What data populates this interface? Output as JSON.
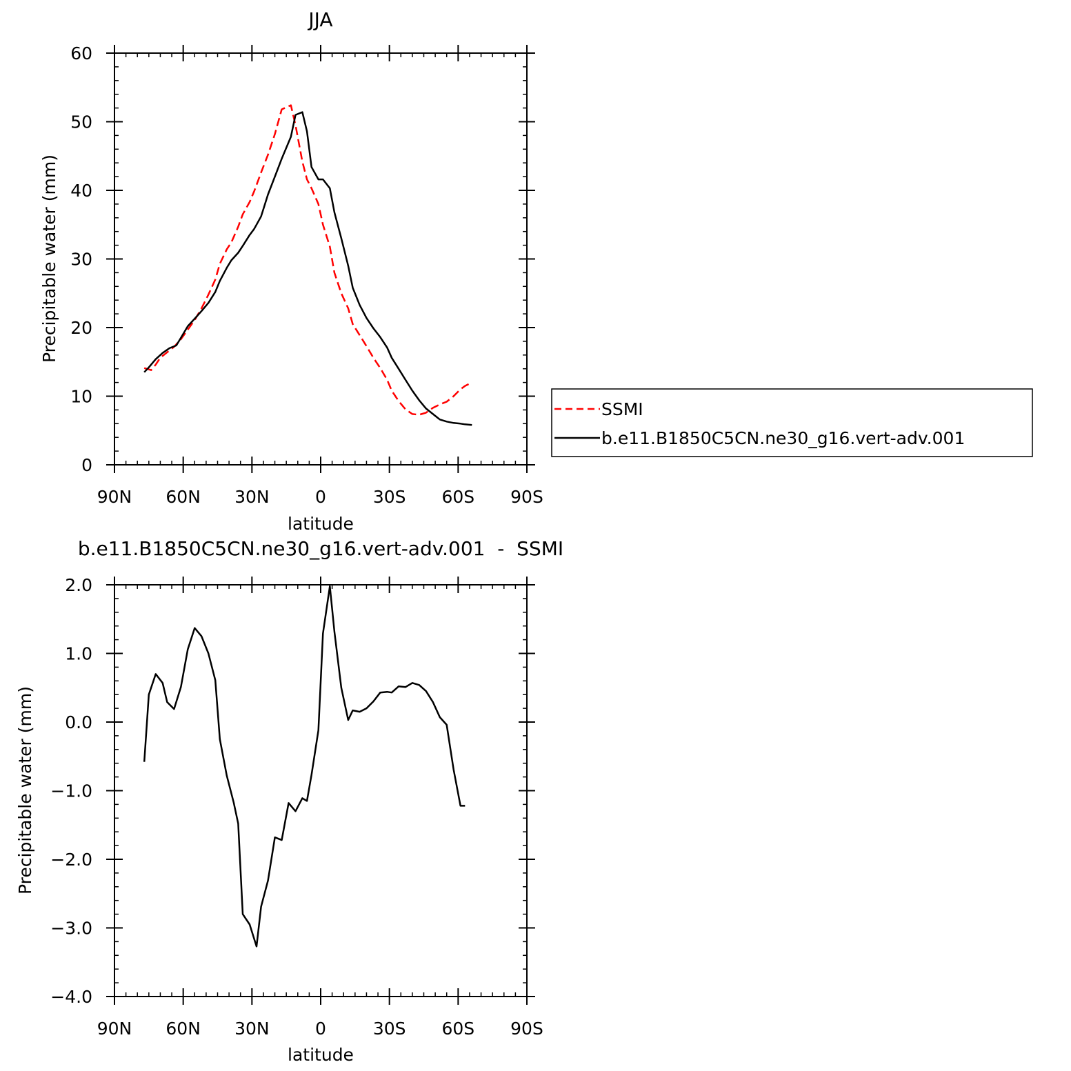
{
  "chart_data": [
    {
      "type": "line",
      "title": "JJA",
      "xlabel": "latitude",
      "ylabel": "Precipitable water (mm)",
      "xlim": [
        90,
        -90
      ],
      "ylim": [
        0,
        60
      ],
      "x_ticks": [
        {
          "value": 90,
          "label": "90N"
        },
        {
          "value": 60,
          "label": "60N"
        },
        {
          "value": 30,
          "label": "30N"
        },
        {
          "value": 0,
          "label": "0"
        },
        {
          "value": -30,
          "label": "30S"
        },
        {
          "value": -60,
          "label": "60S"
        },
        {
          "value": -90,
          "label": "90S"
        }
      ],
      "y_ticks": [
        {
          "value": 0,
          "label": "0"
        },
        {
          "value": 10,
          "label": "10"
        },
        {
          "value": 20,
          "label": "20"
        },
        {
          "value": 30,
          "label": "30"
        },
        {
          "value": 40,
          "label": "40"
        },
        {
          "value": 50,
          "label": "50"
        },
        {
          "value": 60,
          "label": "60"
        }
      ],
      "grid": false,
      "legend_position": "right",
      "series": [
        {
          "name": "SSMI",
          "color": "#ff0000",
          "style": "dashed",
          "x": [
            77,
            74,
            72,
            70,
            67,
            64,
            61,
            58,
            55,
            52,
            49,
            46,
            44,
            41,
            39,
            36,
            34,
            31,
            29,
            26,
            23,
            20,
            17,
            13,
            11,
            8,
            6,
            4,
            1,
            -1,
            -4,
            -6,
            -9,
            -12,
            -14,
            -17,
            -20,
            -23,
            -26,
            -29,
            -31,
            -34,
            -37,
            -40,
            -43,
            -46,
            -49,
            -52,
            -55,
            -58,
            -61,
            -63,
            -66
          ],
          "y": [
            14.1,
            13.8,
            14.6,
            15.6,
            16.4,
            17.2,
            18.3,
            19.7,
            21.1,
            22.8,
            24.8,
            27.0,
            29.3,
            31.4,
            32.4,
            34.7,
            36.5,
            38.3,
            39.9,
            42.6,
            45.2,
            48.2,
            51.8,
            52.4,
            49.5,
            44.2,
            41.6,
            40.3,
            38.0,
            35.0,
            31.8,
            28.0,
            25.0,
            22.8,
            20.5,
            18.9,
            17.3,
            15.6,
            14.1,
            12.4,
            10.8,
            9.3,
            8.1,
            7.4,
            7.3,
            7.6,
            8.3,
            8.8,
            9.2,
            10.0,
            11.0,
            11.5,
            12.0
          ]
        },
        {
          "name": "b.e11.B1850C5CN.ne30_g16.vert-adv.001",
          "color": "#000000",
          "style": "solid",
          "x": [
            77,
            75,
            72,
            69,
            66,
            63,
            61,
            58,
            55,
            52,
            49,
            46,
            44,
            41,
            39,
            36,
            34,
            31,
            29,
            26,
            23,
            20,
            17,
            13,
            11,
            8,
            6,
            4,
            1,
            -1,
            -4,
            -6,
            -9,
            -12,
            -14,
            -17,
            -20,
            -23,
            -26,
            -29,
            -31,
            -34,
            -37,
            -40,
            -43,
            -46,
            -49,
            -52,
            -55,
            -58,
            -61,
            -63,
            -66
          ],
          "y": [
            13.5,
            14.2,
            15.4,
            16.3,
            17.0,
            17.4,
            18.5,
            20.2,
            21.3,
            22.4,
            23.6,
            25.2,
            26.8,
            28.7,
            29.8,
            30.9,
            31.9,
            33.5,
            34.4,
            36.2,
            39.4,
            42.0,
            44.6,
            47.8,
            51.0,
            51.4,
            48.6,
            43.4,
            41.6,
            41.6,
            40.3,
            36.8,
            33.0,
            29.0,
            25.8,
            23.3,
            21.4,
            19.9,
            18.6,
            17.1,
            15.6,
            14.0,
            12.4,
            10.8,
            9.4,
            8.2,
            7.4,
            6.6,
            6.3,
            6.1,
            6.0,
            5.9,
            5.8
          ]
        }
      ]
    },
    {
      "type": "line",
      "title": "b.e11.B1850C5CN.ne30_g16.vert-adv.001  -  SSMI",
      "xlabel": "latitude",
      "ylabel": "Precipitable water (mm)",
      "xlim": [
        90,
        -90
      ],
      "ylim": [
        -4.0,
        2.0
      ],
      "x_ticks": [
        {
          "value": 90,
          "label": "90N"
        },
        {
          "value": 60,
          "label": "60N"
        },
        {
          "value": 30,
          "label": "30N"
        },
        {
          "value": 0,
          "label": "0"
        },
        {
          "value": -30,
          "label": "30S"
        },
        {
          "value": -60,
          "label": "60S"
        },
        {
          "value": -90,
          "label": "90S"
        }
      ],
      "y_ticks": [
        {
          "value": -4.0,
          "label": "−4.0"
        },
        {
          "value": -3.0,
          "label": "−3.0"
        },
        {
          "value": -2.0,
          "label": "−2.0"
        },
        {
          "value": -1.0,
          "label": "−1.0"
        },
        {
          "value": 0.0,
          "label": "0.0"
        },
        {
          "value": 1.0,
          "label": "1.0"
        },
        {
          "value": 2.0,
          "label": "2.0"
        }
      ],
      "grid": false,
      "series": [
        {
          "color": "#000000",
          "style": "solid",
          "x": [
            77,
            75,
            72,
            69,
            67,
            64,
            61,
            58,
            55,
            52,
            49,
            46,
            44,
            41,
            38,
            36,
            34,
            31,
            28,
            26,
            23,
            20,
            17,
            14,
            11,
            8,
            6,
            4,
            1,
            -1,
            -4,
            -6,
            -9,
            -12,
            -14,
            -17,
            -20,
            -23,
            -26,
            -29,
            -31,
            -34,
            -37,
            -40,
            -43,
            -46,
            -49,
            -52,
            -55,
            -58,
            -61,
            -63
          ],
          "y": [
            -0.58,
            0.4,
            0.7,
            0.57,
            0.29,
            0.19,
            0.51,
            1.06,
            1.37,
            1.25,
            1.0,
            0.61,
            -0.25,
            -0.78,
            -1.17,
            -1.48,
            -2.8,
            -2.95,
            -3.27,
            -2.69,
            -2.31,
            -1.68,
            -1.72,
            -1.18,
            -1.3,
            -1.11,
            -1.15,
            -0.77,
            -0.12,
            1.29,
            1.98,
            1.32,
            0.5,
            0.03,
            0.17,
            0.15,
            0.2,
            0.3,
            0.43,
            0.44,
            0.43,
            0.52,
            0.51,
            0.57,
            0.54,
            0.45,
            0.29,
            0.07,
            -0.04,
            -0.69,
            -1.22,
            -1.22
          ]
        }
      ]
    }
  ]
}
